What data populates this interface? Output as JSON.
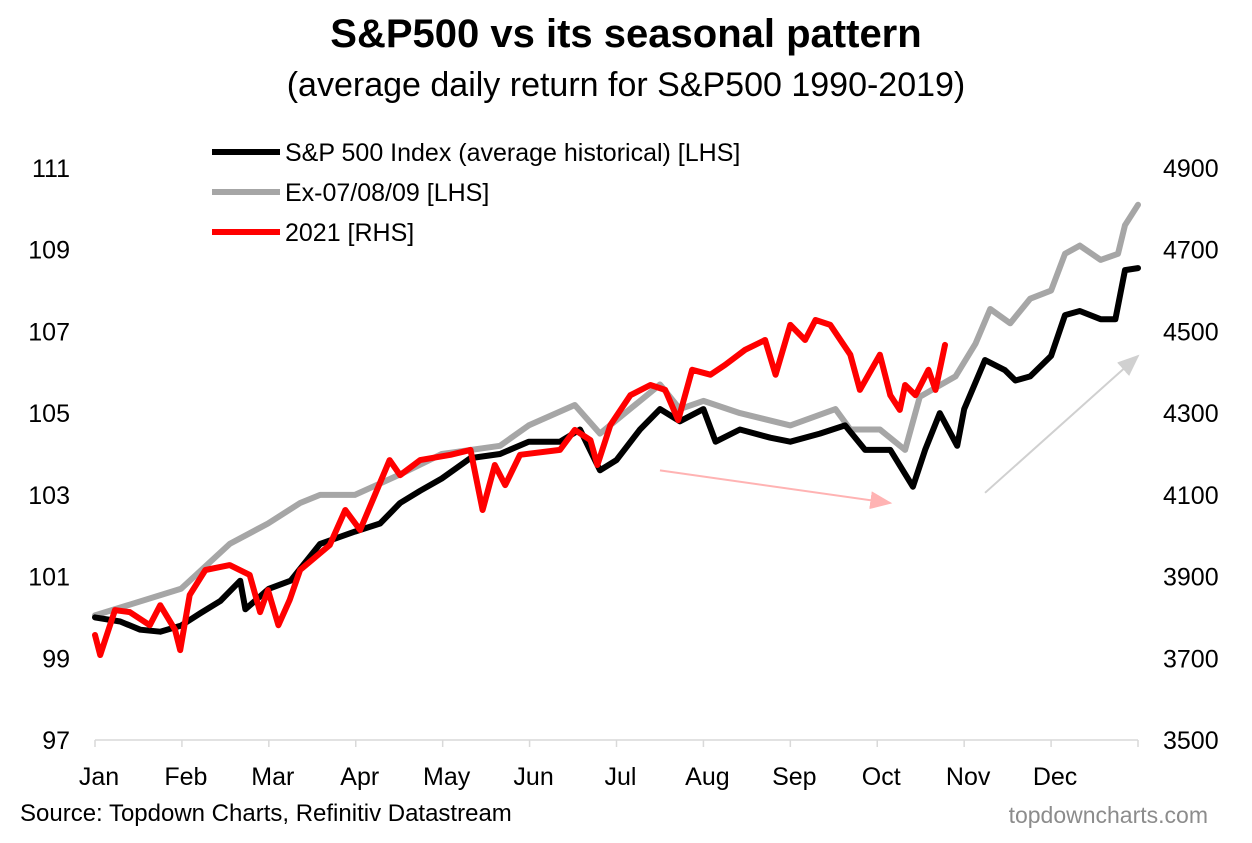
{
  "chart_data": {
    "type": "line",
    "title": "S&P500 vs its seasonal pattern",
    "subtitle": "(average daily return for S&P500 1990-2019)",
    "x_unit": "month index (0 = start of Jan, 12 = end of Dec)",
    "x_tick_labels": [
      "Jan",
      "Feb",
      "Mar",
      "Apr",
      "May",
      "Jun",
      "Jul",
      "Aug",
      "Sep",
      "Oct",
      "Nov",
      "Dec"
    ],
    "ylim_left": [
      97,
      111
    ],
    "yticks_left": [
      97,
      99,
      101,
      103,
      105,
      107,
      109,
      111
    ],
    "ylim_right": [
      3500,
      4900
    ],
    "yticks_right": [
      3500,
      3700,
      3900,
      4100,
      4300,
      4500,
      4700,
      4900
    ],
    "grid": false,
    "legend_placement": "top-left",
    "series": [
      {
        "name": "S&P 500 Index (average historical) [LHS]",
        "axis": "left",
        "color": "#000000",
        "points": [
          [
            0,
            100.0
          ],
          [
            0.29,
            99.9
          ],
          [
            0.52,
            99.7
          ],
          [
            0.75,
            99.65
          ],
          [
            0.99,
            99.8
          ],
          [
            1.21,
            100.1
          ],
          [
            1.44,
            100.4
          ],
          [
            1.67,
            100.9
          ],
          [
            1.73,
            100.2
          ],
          [
            2.0,
            100.7
          ],
          [
            2.25,
            100.9
          ],
          [
            2.59,
            101.8
          ],
          [
            2.99,
            102.1
          ],
          [
            3.28,
            102.3
          ],
          [
            3.51,
            102.8
          ],
          [
            3.74,
            103.1
          ],
          [
            3.99,
            103.4
          ],
          [
            4.32,
            103.9
          ],
          [
            4.66,
            104.0
          ],
          [
            4.99,
            104.3
          ],
          [
            5.35,
            104.3
          ],
          [
            5.58,
            104.6
          ],
          [
            5.81,
            103.6
          ],
          [
            6.0,
            103.85
          ],
          [
            6.27,
            104.6
          ],
          [
            6.5,
            105.1
          ],
          [
            6.73,
            104.8
          ],
          [
            7.0,
            105.1
          ],
          [
            7.14,
            104.3
          ],
          [
            7.42,
            104.6
          ],
          [
            7.77,
            104.4
          ],
          [
            8.0,
            104.3
          ],
          [
            8.34,
            104.5
          ],
          [
            8.63,
            104.7
          ],
          [
            8.86,
            104.1
          ],
          [
            9.15,
            104.1
          ],
          [
            9.41,
            103.2
          ],
          [
            9.55,
            104.1
          ],
          [
            9.72,
            105.0
          ],
          [
            9.92,
            104.2
          ],
          [
            10.0,
            105.1
          ],
          [
            10.24,
            106.3
          ],
          [
            10.47,
            106.05
          ],
          [
            10.59,
            105.8
          ],
          [
            10.76,
            105.9
          ],
          [
            11.0,
            106.4
          ],
          [
            11.16,
            107.4
          ],
          [
            11.33,
            107.5
          ],
          [
            11.57,
            107.3
          ],
          [
            11.74,
            107.3
          ],
          [
            11.85,
            108.5
          ],
          [
            12.0,
            108.55
          ]
        ]
      },
      {
        "name": "Ex-07/08/09 [LHS]",
        "axis": "left",
        "color": "#a6a6a6",
        "points": [
          [
            0,
            100.05
          ],
          [
            0.99,
            100.7
          ],
          [
            1.55,
            101.8
          ],
          [
            1.99,
            102.3
          ],
          [
            2.36,
            102.8
          ],
          [
            2.59,
            103.0
          ],
          [
            2.99,
            103.0
          ],
          [
            3.51,
            103.5
          ],
          [
            3.99,
            104.0
          ],
          [
            4.66,
            104.2
          ],
          [
            4.99,
            104.7
          ],
          [
            5.52,
            105.2
          ],
          [
            5.81,
            104.5
          ],
          [
            6.27,
            105.3
          ],
          [
            6.5,
            105.7
          ],
          [
            6.73,
            105.1
          ],
          [
            7.0,
            105.3
          ],
          [
            7.42,
            105.0
          ],
          [
            8.0,
            104.7
          ],
          [
            8.52,
            105.1
          ],
          [
            8.69,
            104.6
          ],
          [
            9.03,
            104.6
          ],
          [
            9.32,
            104.1
          ],
          [
            9.49,
            105.4
          ],
          [
            9.9,
            105.9
          ],
          [
            10.13,
            106.7
          ],
          [
            10.3,
            107.55
          ],
          [
            10.53,
            107.2
          ],
          [
            10.76,
            107.8
          ],
          [
            11.0,
            108.0
          ],
          [
            11.16,
            108.9
          ],
          [
            11.33,
            109.1
          ],
          [
            11.57,
            108.75
          ],
          [
            11.77,
            108.9
          ],
          [
            11.85,
            109.6
          ],
          [
            12.0,
            110.1
          ]
        ]
      },
      {
        "name": "2021 [RHS]",
        "axis": "right",
        "color": "#ff0000",
        "points": [
          [
            0,
            3757
          ],
          [
            0.06,
            3708
          ],
          [
            0.23,
            3818
          ],
          [
            0.4,
            3813
          ],
          [
            0.63,
            3781
          ],
          [
            0.75,
            3830
          ],
          [
            0.92,
            3770
          ],
          [
            0.98,
            3720
          ],
          [
            1.09,
            3855
          ],
          [
            1.27,
            3916
          ],
          [
            1.55,
            3928
          ],
          [
            1.78,
            3904
          ],
          [
            1.9,
            3813
          ],
          [
            1.99,
            3867
          ],
          [
            2.11,
            3781
          ],
          [
            2.24,
            3843
          ],
          [
            2.36,
            3916
          ],
          [
            2.7,
            3977
          ],
          [
            2.88,
            4063
          ],
          [
            3.05,
            4014
          ],
          [
            3.22,
            4100
          ],
          [
            3.39,
            4185
          ],
          [
            3.51,
            4148
          ],
          [
            3.74,
            4185
          ],
          [
            4.09,
            4198
          ],
          [
            4.32,
            4210
          ],
          [
            4.46,
            4063
          ],
          [
            4.6,
            4173
          ],
          [
            4.72,
            4124
          ],
          [
            4.89,
            4198
          ],
          [
            5.35,
            4210
          ],
          [
            5.52,
            4259
          ],
          [
            5.7,
            4234
          ],
          [
            5.78,
            4173
          ],
          [
            5.93,
            4271
          ],
          [
            6.16,
            4344
          ],
          [
            6.39,
            4369
          ],
          [
            6.56,
            4357
          ],
          [
            6.71,
            4283
          ],
          [
            6.87,
            4406
          ],
          [
            7.08,
            4394
          ],
          [
            7.25,
            4418
          ],
          [
            7.48,
            4455
          ],
          [
            7.71,
            4479
          ],
          [
            7.83,
            4394
          ],
          [
            8.0,
            4516
          ],
          [
            8.17,
            4479
          ],
          [
            8.29,
            4528
          ],
          [
            8.46,
            4516
          ],
          [
            8.69,
            4443
          ],
          [
            8.8,
            4357
          ],
          [
            9.03,
            4443
          ],
          [
            9.15,
            4344
          ],
          [
            9.26,
            4308
          ],
          [
            9.32,
            4369
          ],
          [
            9.44,
            4344
          ],
          [
            9.59,
            4406
          ],
          [
            9.67,
            4357
          ],
          [
            9.78,
            4467
          ]
        ]
      }
    ],
    "annotations": [
      {
        "type": "arrow",
        "color": "#ffb3b3",
        "from": [
          6.5,
          103.6
        ],
        "to": [
          9.15,
          102.8
        ],
        "axis": "left"
      },
      {
        "type": "arrow",
        "color": "#d0d0d0",
        "from": [
          10.24,
          103.05
        ],
        "to": [
          12.0,
          106.4
        ],
        "axis": "left"
      }
    ]
  },
  "footer": {
    "source": "Source: Topdown Charts, Refinitiv Datastream",
    "brand": "topdowncharts.com"
  }
}
